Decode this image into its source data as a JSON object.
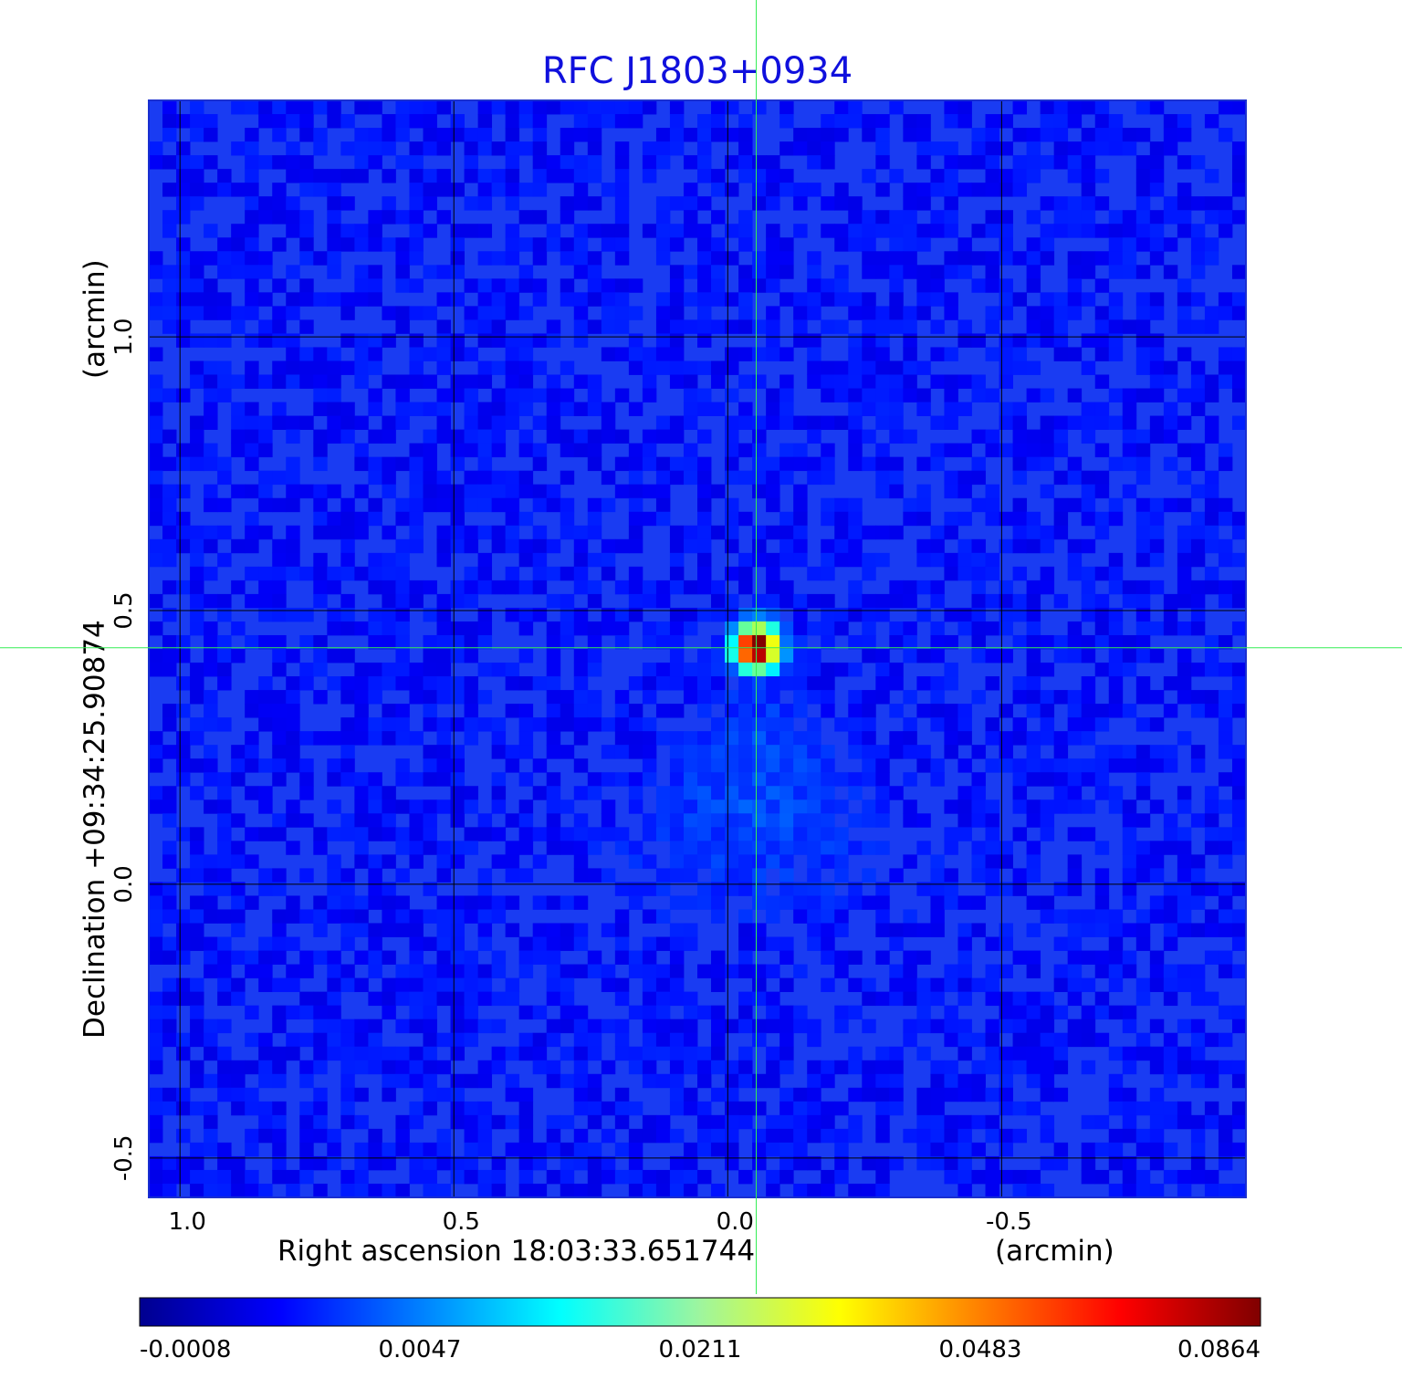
{
  "chart_data": {
    "type": "heatmap",
    "title": "RFC J1803+0934",
    "xlabel": "Right ascension  18:03:33.651744",
    "xunit": "(arcmin)",
    "ylabel": "Declination  +09:34:25.90874",
    "yunit": "(arcmin)",
    "x_ticks": [
      {
        "value": 1.0,
        "label": "1.0"
      },
      {
        "value": 0.5,
        "label": "0.5"
      },
      {
        "value": 0.0,
        "label": "0.0"
      },
      {
        "value": -0.5,
        "label": "-0.5"
      }
    ],
    "y_ticks": [
      {
        "value": 1.0,
        "label": "1.0"
      },
      {
        "value": 0.5,
        "label": "0.5"
      },
      {
        "value": 0.0,
        "label": "0.0"
      },
      {
        "value": -0.5,
        "label": "-0.5"
      }
    ],
    "xlim": [
      1.057,
      -0.946
    ],
    "ylim": [
      -0.572,
      1.432
    ],
    "grid": true,
    "crosshair": {
      "x": -0.052,
      "y": 0.432
    },
    "source_peak": {
      "x": -0.052,
      "y": 0.432,
      "value": 0.0864
    },
    "colorbar": {
      "colormap": "jet",
      "tick_labels": [
        "-0.0008",
        "0.0047",
        "0.0211",
        "0.0483",
        "0.0864"
      ],
      "min": -0.0008,
      "max": 0.0864
    },
    "colors": {
      "background_field": "#1a3cf2",
      "crosshair": "#33ee55",
      "grid": "#000000",
      "title": "#1010dd"
    }
  }
}
